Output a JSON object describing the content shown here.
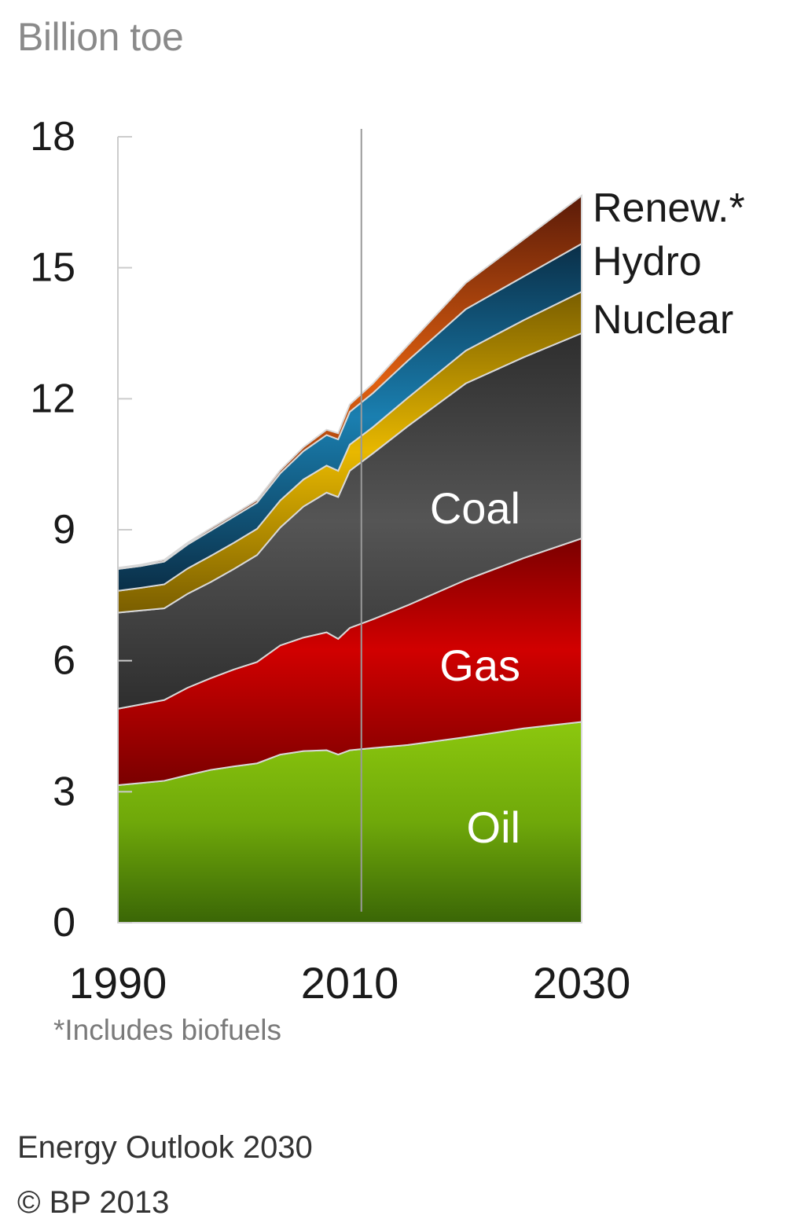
{
  "chart_data": {
    "type": "area",
    "stacked": true,
    "ylabel": "Billion toe",
    "xlabel": "",
    "xlim": [
      1990,
      2030
    ],
    "ylim": [
      0,
      18
    ],
    "x_ticks": [
      1990,
      2010,
      2030
    ],
    "y_ticks": [
      0,
      3,
      6,
      9,
      12,
      15,
      18
    ],
    "divider_year": 2011,
    "grid": false,
    "x": [
      1990,
      1992,
      1994,
      1996,
      1998,
      2000,
      2002,
      2004,
      2006,
      2008,
      2009,
      2010,
      2012,
      2015,
      2020,
      2025,
      2030
    ],
    "series": [
      {
        "name": "Oil",
        "label": "Oil",
        "color": "#6fa80a",
        "values": [
          3.15,
          3.2,
          3.25,
          3.38,
          3.5,
          3.58,
          3.65,
          3.85,
          3.93,
          3.95,
          3.85,
          3.95,
          4.0,
          4.07,
          4.25,
          4.45,
          4.6
        ]
      },
      {
        "name": "Gas",
        "label": "Gas",
        "color": "#c80000",
        "values": [
          1.75,
          1.8,
          1.85,
          2.0,
          2.1,
          2.22,
          2.32,
          2.5,
          2.6,
          2.7,
          2.65,
          2.8,
          2.95,
          3.2,
          3.6,
          3.9,
          4.2
        ]
      },
      {
        "name": "Coal",
        "label": "Coal",
        "color": "#4a4a4a",
        "values": [
          2.2,
          2.15,
          2.1,
          2.15,
          2.2,
          2.3,
          2.45,
          2.7,
          3.0,
          3.2,
          3.25,
          3.6,
          3.8,
          4.1,
          4.5,
          4.6,
          4.7
        ]
      },
      {
        "name": "Nuclear",
        "label": "Nuclear",
        "color": "#c8a000",
        "values": [
          0.5,
          0.52,
          0.55,
          0.58,
          0.6,
          0.6,
          0.6,
          0.62,
          0.62,
          0.62,
          0.6,
          0.6,
          0.6,
          0.65,
          0.75,
          0.85,
          0.95
        ]
      },
      {
        "name": "Hydro",
        "label": "Hydro",
        "color": "#0f5f8a",
        "values": [
          0.5,
          0.5,
          0.52,
          0.55,
          0.58,
          0.6,
          0.6,
          0.62,
          0.65,
          0.7,
          0.72,
          0.75,
          0.78,
          0.85,
          0.95,
          1.0,
          1.1
        ]
      },
      {
        "name": "Renew.*",
        "label": "Renew.*",
        "color": "#b84a12",
        "values": [
          0.03,
          0.03,
          0.04,
          0.04,
          0.05,
          0.05,
          0.06,
          0.07,
          0.09,
          0.12,
          0.14,
          0.17,
          0.22,
          0.35,
          0.6,
          0.85,
          1.1
        ]
      }
    ]
  },
  "footnote": "*Includes biofuels",
  "source": {
    "line1": "Energy Outlook 2030",
    "line2": "© BP 2013"
  }
}
